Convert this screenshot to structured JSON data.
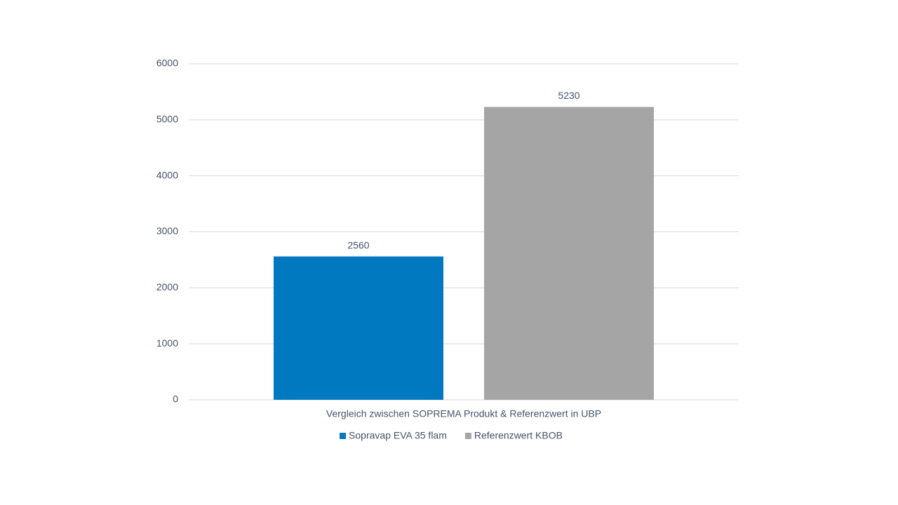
{
  "chart_data": {
    "type": "bar",
    "categories": [
      "Vergleich zwischen SOPREMA Produkt & Referenzwert in UBP"
    ],
    "series": [
      {
        "name": "Sopravap EVA 35 flam",
        "color": "#0079c1",
        "values": [
          2560
        ]
      },
      {
        "name": "Referenzwert KBOB",
        "color": "#a5a5a5",
        "values": [
          5230
        ]
      }
    ],
    "ylim": [
      0,
      6000
    ],
    "yticks": [
      0,
      1000,
      2000,
      3000,
      4000,
      5000,
      6000
    ],
    "grid": true,
    "data_labels": true,
    "legend": "bottom"
  }
}
